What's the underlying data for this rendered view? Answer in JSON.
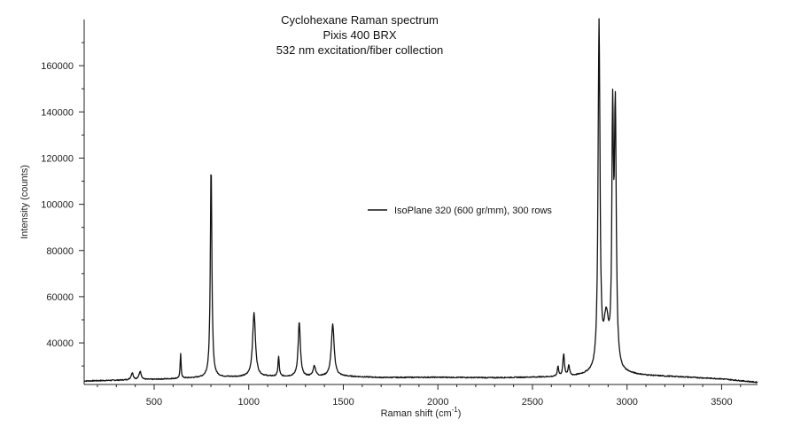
{
  "chart_data": {
    "type": "line",
    "title_lines": [
      "Cyclohexane Raman spectrum",
      "Pixis 400 BRX",
      "532 nm excitation/fiber collection"
    ],
    "xlabel_main": "Raman shift (cm",
    "xlabel_sup": "-1",
    "xlabel_end": ")",
    "ylabel": "Intensity (counts)",
    "xlim": [
      130,
      3690
    ],
    "ylim": [
      22000,
      180000
    ],
    "x_ticks": [
      500,
      1000,
      1500,
      2000,
      2500,
      3000,
      3500
    ],
    "x_tick_labels": [
      "500",
      "1000",
      "1500",
      "2000",
      "2500",
      "3000",
      "3500"
    ],
    "y_ticks": [
      40000,
      60000,
      80000,
      100000,
      120000,
      140000,
      160000
    ],
    "y_tick_labels": [
      "40000",
      "60000",
      "80000",
      "100000",
      "120000",
      "140000",
      "160000"
    ],
    "grid": false,
    "legend_position": "center-right",
    "series": [
      {
        "name": "IsoPlane 320 (600 gr/mm), 300 rows",
        "color": "#111111",
        "baseline": [
          [
            130,
            23500
          ],
          [
            500,
            24200
          ],
          [
            700,
            24800
          ],
          [
            900,
            25200
          ],
          [
            1100,
            25400
          ],
          [
            1300,
            25300
          ],
          [
            1500,
            25500
          ],
          [
            1700,
            25000
          ],
          [
            2000,
            25100
          ],
          [
            2300,
            24900
          ],
          [
            2500,
            25100
          ],
          [
            2700,
            25300
          ],
          [
            2800,
            26000
          ],
          [
            3000,
            26300
          ],
          [
            3100,
            25800
          ],
          [
            3300,
            25200
          ],
          [
            3500,
            24400
          ],
          [
            3690,
            22900
          ]
        ],
        "peaks": [
          {
            "x": 384,
            "height": 3000,
            "width": 7
          },
          {
            "x": 426,
            "height": 3600,
            "width": 7
          },
          {
            "x": 640,
            "height": 10500,
            "width": 3
          },
          {
            "x": 801,
            "height": 91000,
            "width": 5
          },
          {
            "x": 1028,
            "height": 27500,
            "width": 9
          },
          {
            "x": 1158,
            "height": 8500,
            "width": 4
          },
          {
            "x": 1267,
            "height": 23500,
            "width": 7
          },
          {
            "x": 1347,
            "height": 4500,
            "width": 8
          },
          {
            "x": 1444,
            "height": 22500,
            "width": 9
          },
          {
            "x": 2635,
            "height": 4500,
            "width": 4
          },
          {
            "x": 2665,
            "height": 9500,
            "width": 5
          },
          {
            "x": 2692,
            "height": 4500,
            "width": 5
          },
          {
            "x": 2852,
            "height": 150000,
            "width": 6
          },
          {
            "x": 2890,
            "height": 22000,
            "width": 16
          },
          {
            "x": 2924,
            "height": 102000,
            "width": 5
          },
          {
            "x": 2938,
            "height": 108000,
            "width": 6
          }
        ],
        "sample_step": 2
      }
    ]
  }
}
